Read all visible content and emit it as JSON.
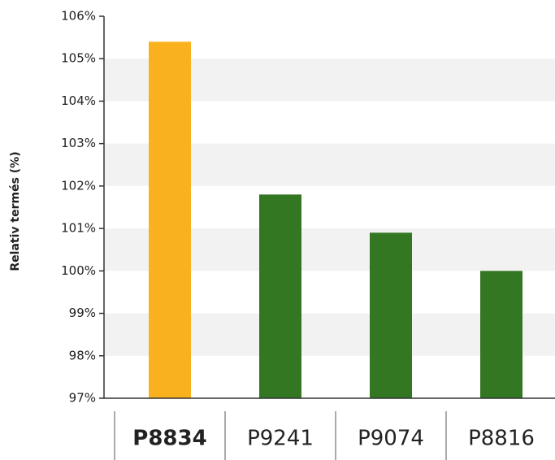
{
  "chart_data": {
    "type": "bar",
    "y_label": "Relativ termés (%)",
    "categories": [
      "P8834",
      "P9241",
      "P9074",
      "P8816"
    ],
    "values": [
      105.4,
      101.8,
      100.9,
      100.0
    ],
    "colors": [
      "#f9b21d",
      "#337722",
      "#337722",
      "#337722"
    ],
    "highlight": 0,
    "ylim": [
      97,
      106
    ],
    "yticks": [
      {
        "value": 97,
        "label": "97%"
      },
      {
        "value": 98,
        "label": "98%"
      },
      {
        "value": 99,
        "label": "99%"
      },
      {
        "value": 100,
        "label": "100%"
      },
      {
        "value": 101,
        "label": "101%"
      },
      {
        "value": 102,
        "label": "102%"
      },
      {
        "value": 103,
        "label": "103%"
      },
      {
        "value": 104,
        "label": "104%"
      },
      {
        "value": 105,
        "label": "105%"
      },
      {
        "value": 106,
        "label": "106%"
      }
    ],
    "grid": "bands"
  }
}
